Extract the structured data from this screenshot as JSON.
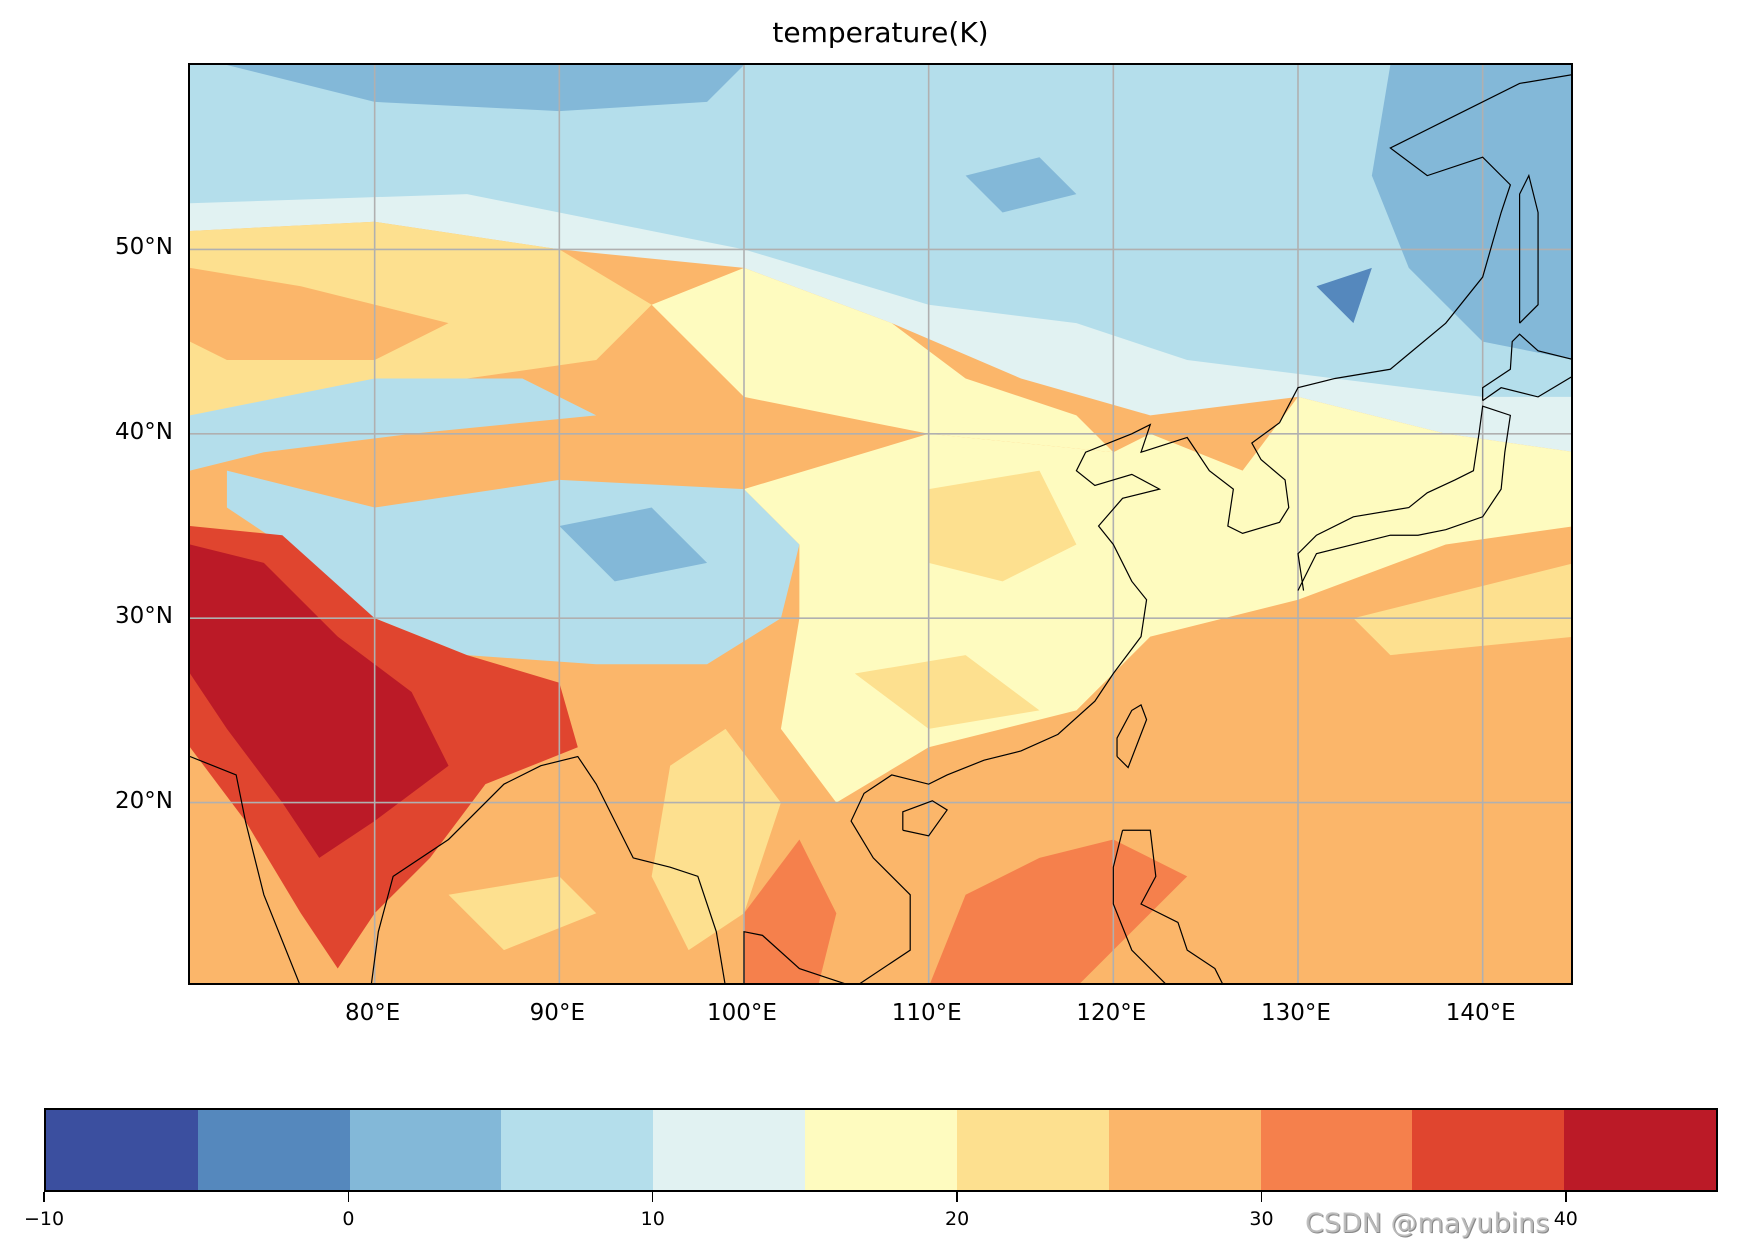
{
  "title": "temperature(K)",
  "map": {
    "extent": {
      "lon": [
        70,
        145
      ],
      "lat": [
        10,
        60
      ]
    },
    "gridlines": true,
    "gridline_color": "#b0b0b0",
    "lat_ticks": [
      {
        "value": 20,
        "label": "20°N"
      },
      {
        "value": 30,
        "label": "30°N"
      },
      {
        "value": 40,
        "label": "40°N"
      },
      {
        "value": 50,
        "label": "50°N"
      }
    ],
    "lon_ticks": [
      {
        "value": 80,
        "label": "80°E"
      },
      {
        "value": 90,
        "label": "90°E"
      },
      {
        "value": 100,
        "label": "100°E"
      },
      {
        "value": 110,
        "label": "110°E"
      },
      {
        "value": 120,
        "label": "120°E"
      },
      {
        "value": 130,
        "label": "130°E"
      },
      {
        "value": 140,
        "label": "140°E"
      }
    ],
    "coastlines": true
  },
  "chart_data": {
    "type": "heatmap",
    "title": "temperature(K)",
    "colormap": "RdYlBu_r",
    "levels": [
      -10,
      -5,
      0,
      5,
      10,
      15,
      20,
      25,
      30,
      35,
      40,
      45
    ],
    "colors": [
      "#3b4f9f",
      "#5588bd",
      "#83b8d8",
      "#b4deeb",
      "#e1f2f2",
      "#fefbbf",
      "#fde08f",
      "#fbb66a",
      "#f5804c",
      "#e0452f",
      "#bb1a27"
    ],
    "colorbar": {
      "orientation": "horizontal",
      "placement": "bottom",
      "ticks": [
        {
          "value": -10,
          "label": "−10"
        },
        {
          "value": 0,
          "label": "0"
        },
        {
          "value": 10,
          "label": "10"
        },
        {
          "value": 20,
          "label": "20"
        },
        {
          "value": 30,
          "label": "30"
        },
        {
          "value": 40,
          "label": "40"
        }
      ]
    }
  },
  "watermark": "CSDN @mayubins"
}
